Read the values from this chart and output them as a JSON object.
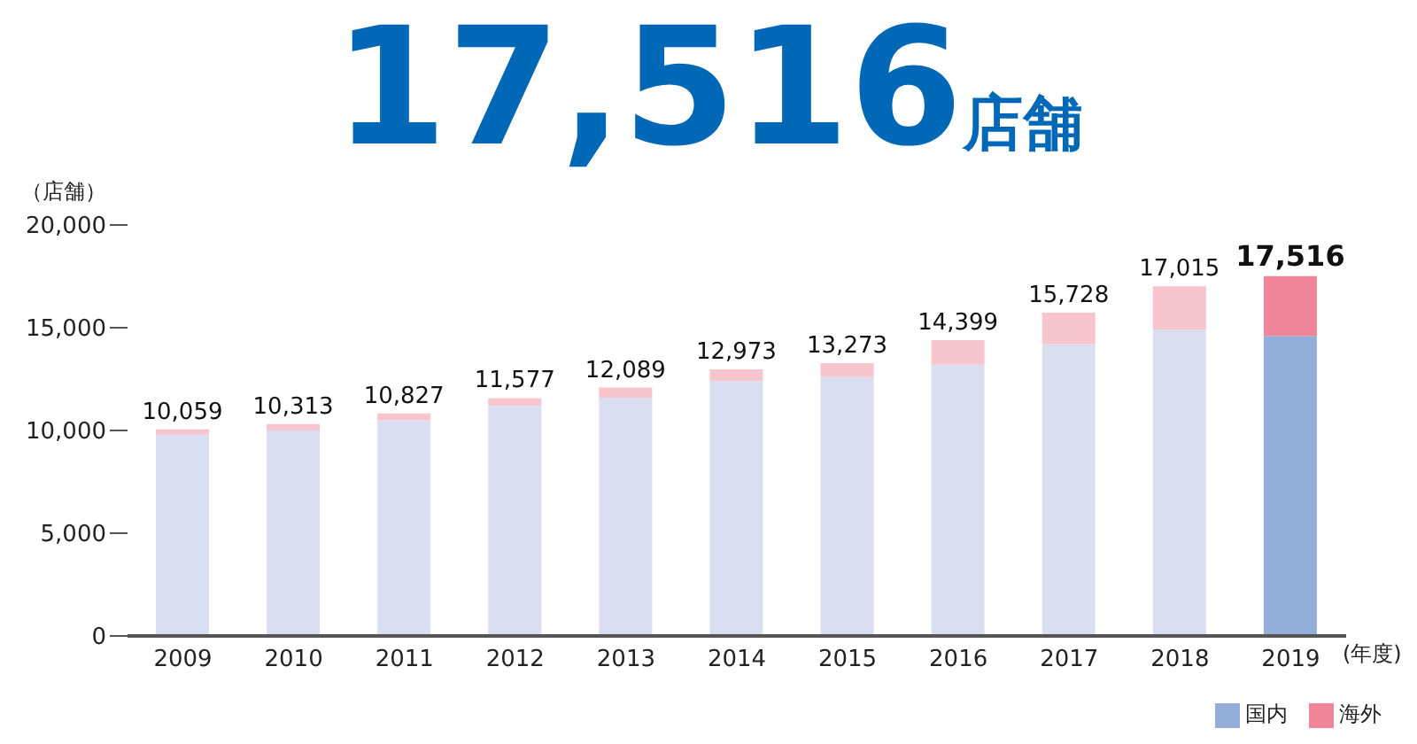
{
  "chart_data": {
    "type": "bar",
    "title": "17,516店舗",
    "ylabel": "（店舗）",
    "xlabel": "(年度)",
    "stacked": true,
    "categories": [
      "2009",
      "2010",
      "2011",
      "2012",
      "2013",
      "2014",
      "2015",
      "2016",
      "2017",
      "2018",
      "2019"
    ],
    "series": [
      {
        "name": "国内",
        "color": "#94afda",
        "colors": [
          "#d9dff0",
          "#d9dff0",
          "#d9dff0",
          "#d9dff0",
          "#d9dff0",
          "#d9dff0",
          "#d9dff0",
          "#d9dff0",
          "#d9dff0",
          "#d9dff0",
          "#94afda"
        ],
        "values": [
          9800,
          10000,
          10500,
          11200,
          11600,
          12400,
          12600,
          13200,
          14200,
          14900,
          14600
        ]
      },
      {
        "name": "海外",
        "color": "#ee8599",
        "colors": [
          "#f7c5cd",
          "#f7c5cd",
          "#f7c5cd",
          "#f7c5cd",
          "#f7c5cd",
          "#f7c5cd",
          "#f7c5cd",
          "#f7c5cd",
          "#f7c5cd",
          "#f7c5cd",
          "#ee8599"
        ],
        "values": [
          259,
          313,
          327,
          377,
          489,
          573,
          673,
          1199,
          1528,
          2115,
          2916
        ]
      }
    ],
    "totals": [
      "10,059",
      "10,313",
      "10,827",
      "11,577",
      "12,089",
      "12,973",
      "13,273",
      "14,399",
      "15,728",
      "17,015",
      "17,516"
    ],
    "ylim": [
      0,
      20000
    ],
    "yticks": [
      0,
      {
        "value": 5000,
        "label": "5,000"
      },
      {
        "value": 10000,
        "label": "10,000"
      },
      {
        "value": 15000,
        "label": "15,000"
      },
      {
        "value": 20000,
        "label": "20,000"
      }
    ],
    "grid": false,
    "legend": "bottom right"
  }
}
